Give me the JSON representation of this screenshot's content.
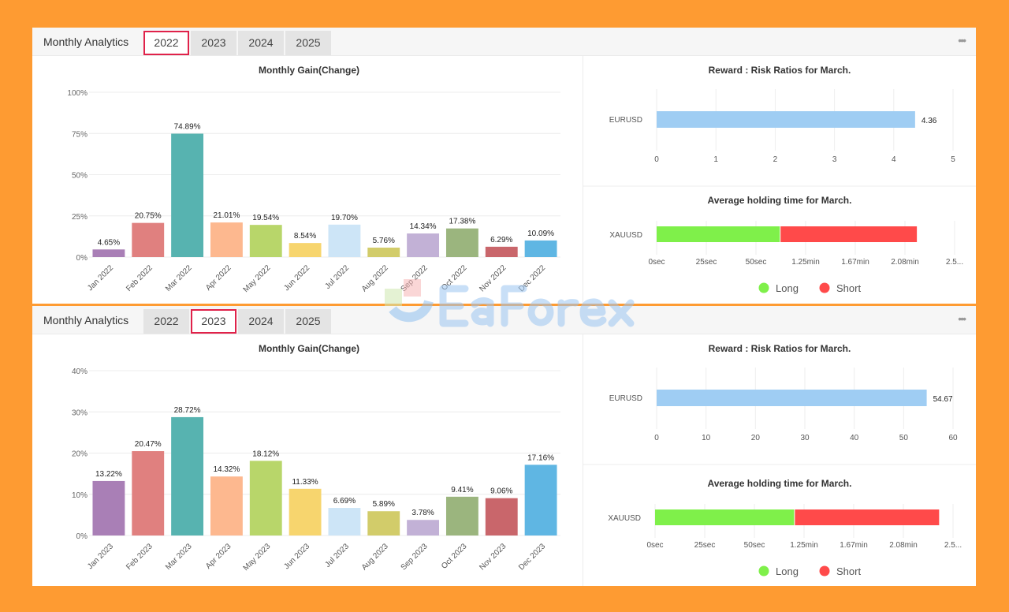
{
  "watermark": "EaForex",
  "bar_colors": [
    "#a97fb6",
    "#e0807f",
    "#57b3b0",
    "#fdb88f",
    "#b8d66a",
    "#f7d56e",
    "#cde5f7",
    "#d2cc6a",
    "#c2b1d6",
    "#9bb57e",
    "#c9666b",
    "#5fb6e3"
  ],
  "long_color": "#7ff04a",
  "short_color": "#ff4a4a",
  "ratio_color": "#9fcdf3",
  "panels": [
    {
      "title": "Monthly Analytics",
      "tabs": [
        "2022",
        "2023",
        "2024",
        "2025"
      ],
      "active_tab": "2022",
      "more_label": "•••",
      "chart_data": [
        {
          "type": "bar",
          "title": "Monthly Gain(Change)",
          "categories": [
            "Jan 2022",
            "Feb 2022",
            "Mar 2022",
            "Apr 2022",
            "May 2022",
            "Jun 2022",
            "Jul 2022",
            "Aug 2022",
            "Sep 2022",
            "Oct 2022",
            "Nov 2022",
            "Dec 2022"
          ],
          "values": [
            4.65,
            20.75,
            74.89,
            21.01,
            19.54,
            8.54,
            19.7,
            5.76,
            14.34,
            17.38,
            6.29,
            10.09
          ],
          "labels": [
            "4.65%",
            "20.75%",
            "74.89%",
            "21.01%",
            "19.54%",
            "8.54%",
            "19.70%",
            "5.76%",
            "14.34%",
            "17.38%",
            "6.29%",
            "10.09%"
          ],
          "ylim": [
            0,
            100
          ],
          "yticks": [
            0,
            25,
            50,
            75,
            100
          ],
          "ytick_labels": [
            "0%",
            "25%",
            "50%",
            "75%",
            "100%"
          ],
          "grid": true
        },
        {
          "type": "bar",
          "orientation": "horizontal",
          "title": "Reward : Risk Ratios for March.",
          "categories": [
            "EURUSD"
          ],
          "values": [
            4.36
          ],
          "labels": [
            "4.36"
          ],
          "xlim": [
            0,
            5
          ],
          "xtick_labels": [
            "0",
            "1",
            "2",
            "3",
            "4",
            "5"
          ]
        },
        {
          "type": "bar",
          "orientation": "horizontal",
          "stacked": true,
          "title": "Average holding time for March.",
          "categories": [
            "XAUUSD"
          ],
          "series": [
            {
              "name": "Long",
              "values": [
                62
              ]
            },
            {
              "name": "Short",
              "values": [
                69
              ]
            }
          ],
          "xlim_seconds": [
            0,
            150
          ],
          "xtick_labels": [
            "0sec",
            "25sec",
            "50sec",
            "1.25min",
            "1.67min",
            "2.08min",
            "2.5..."
          ],
          "legend": "bottom"
        }
      ]
    },
    {
      "title": "Monthly Analytics",
      "tabs": [
        "2022",
        "2023",
        "2024",
        "2025"
      ],
      "active_tab": "2023",
      "more_label": "•••",
      "chart_data": [
        {
          "type": "bar",
          "title": "Monthly Gain(Change)",
          "categories": [
            "Jan 2023",
            "Feb 2023",
            "Mar 2023",
            "Apr 2023",
            "May 2023",
            "Jun 2023",
            "Jul 2023",
            "Aug 2023",
            "Sep 2023",
            "Oct 2023",
            "Nov 2023",
            "Dec 2023"
          ],
          "values": [
            13.22,
            20.47,
            28.72,
            14.32,
            18.12,
            11.33,
            6.69,
            5.89,
            3.78,
            9.41,
            9.06,
            17.16
          ],
          "labels": [
            "13.22%",
            "20.47%",
            "28.72%",
            "14.32%",
            "18.12%",
            "11.33%",
            "6.69%",
            "5.89%",
            "3.78%",
            "9.41%",
            "9.06%",
            "17.16%"
          ],
          "ylim": [
            0,
            40
          ],
          "yticks": [
            0,
            10,
            20,
            30,
            40
          ],
          "ytick_labels": [
            "0%",
            "10%",
            "20%",
            "30%",
            "40%"
          ],
          "grid": true
        },
        {
          "type": "bar",
          "orientation": "horizontal",
          "title": "Reward : Risk Ratios for March.",
          "categories": [
            "EURUSD"
          ],
          "values": [
            54.67
          ],
          "labels": [
            "54.67"
          ],
          "xlim": [
            0,
            60
          ],
          "xtick_labels": [
            "0",
            "10",
            "20",
            "30",
            "40",
            "50",
            "60"
          ]
        },
        {
          "type": "bar",
          "orientation": "horizontal",
          "stacked": true,
          "title": "Average holding time for March.",
          "categories": [
            "XAUUSD"
          ],
          "series": [
            {
              "name": "Long",
              "values": [
                70
              ]
            },
            {
              "name": "Short",
              "values": [
                73
              ]
            }
          ],
          "xlim_seconds": [
            0,
            150
          ],
          "xtick_labels": [
            "0sec",
            "25sec",
            "50sec",
            "1.25min",
            "1.67min",
            "2.08min",
            "2.5..."
          ],
          "legend": "bottom"
        }
      ]
    }
  ]
}
